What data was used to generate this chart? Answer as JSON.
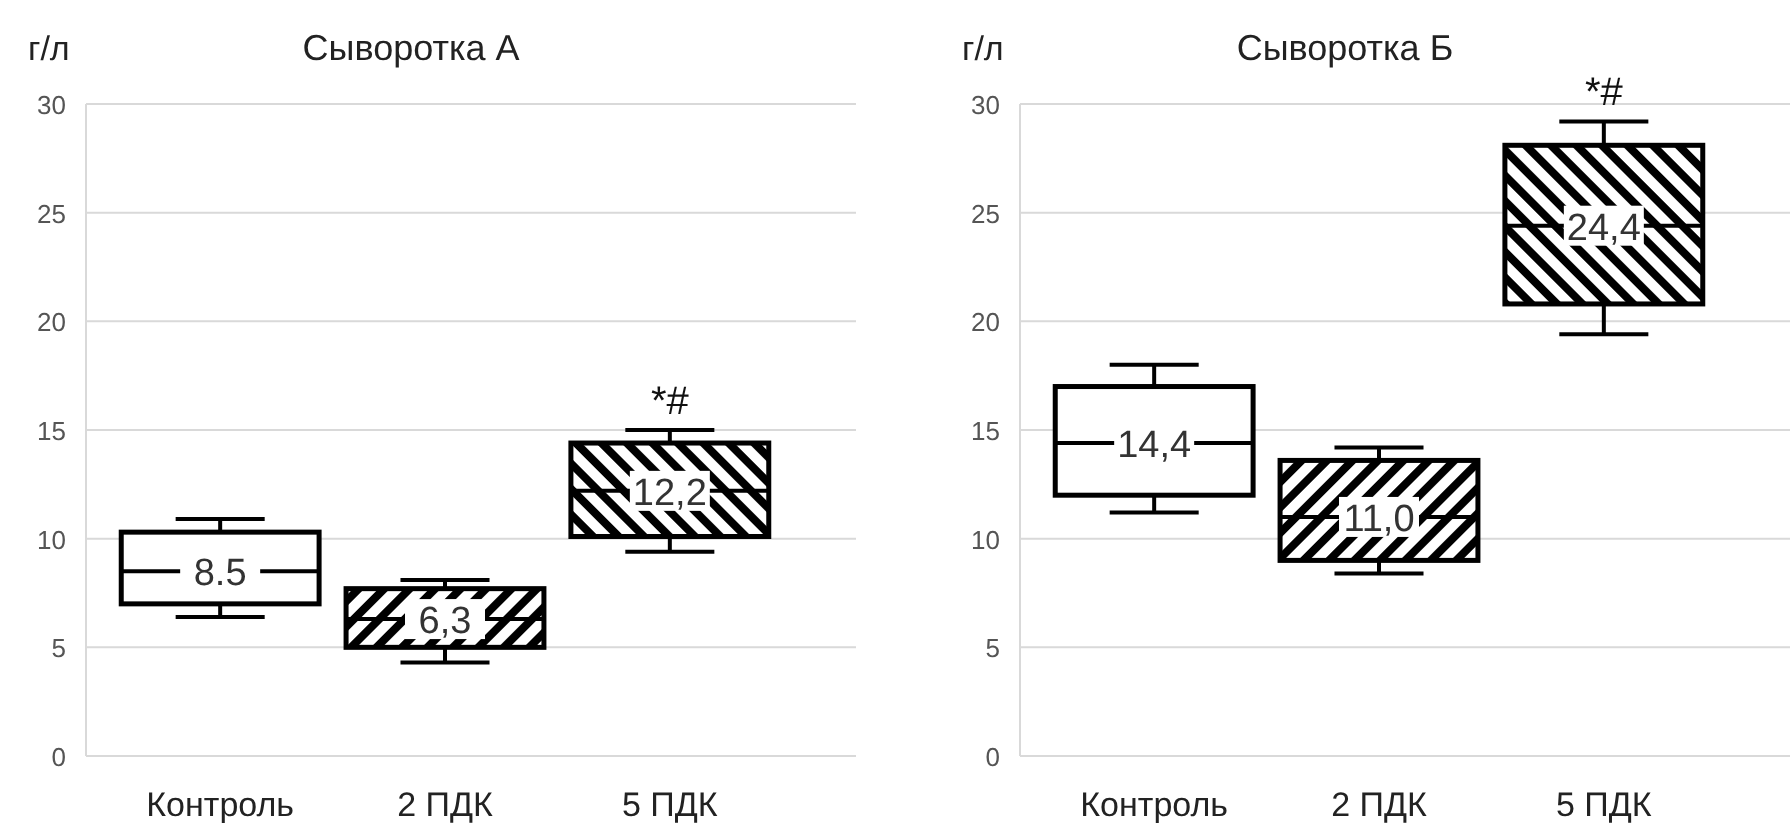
{
  "chart_data": [
    {
      "type": "box",
      "title": "Сыворотка А",
      "ylabel": "г/л",
      "categories": [
        "Контроль",
        "2 ПДК",
        "5 ПДК"
      ],
      "ylim": [
        0,
        30
      ],
      "yticks": [
        0,
        5,
        10,
        15,
        20,
        25,
        30
      ],
      "grid": "y",
      "colors": [
        "#ffffff",
        "#000000",
        "#000000"
      ],
      "boxes": [
        {
          "low": 6.4,
          "q1": 7.0,
          "median": 8.5,
          "q3": 10.3,
          "high": 10.9
        },
        {
          "low": 4.3,
          "q1": 5.0,
          "median": 6.3,
          "q3": 7.7,
          "high": 8.1
        },
        {
          "low": 9.4,
          "q1": 10.1,
          "median": 12.2,
          "q3": 14.4,
          "high": 15.0
        }
      ],
      "value_labels": [
        "8.5",
        "6,3",
        "12,2"
      ],
      "annotations": [
        {
          "text": "*#",
          "x": "5 ПДК",
          "y": 15.0
        }
      ]
    },
    {
      "type": "box",
      "title": "Сыворотка Б",
      "ylabel": "г/л",
      "categories": [
        "Контроль",
        "2 ПДК",
        "5 ПДК"
      ],
      "ylim": [
        0,
        30
      ],
      "yticks": [
        0,
        5,
        10,
        15,
        20,
        25,
        30
      ],
      "grid": "y",
      "colors": [
        "#ffffff",
        "#000000",
        "#000000"
      ],
      "boxes": [
        {
          "low": 11.2,
          "q1": 12.0,
          "median": 14.4,
          "q3": 17.0,
          "high": 18.0
        },
        {
          "low": 8.4,
          "q1": 9.0,
          "median": 11.0,
          "q3": 13.6,
          "high": 14.2
        },
        {
          "low": 19.4,
          "q1": 20.8,
          "median": 24.4,
          "q3": 28.1,
          "high": 29.2
        }
      ],
      "value_labels": [
        "14,4",
        "11,0",
        "24,4"
      ],
      "annotations": [
        {
          "text": "*#",
          "x": "5 ПДК",
          "y": 29.2
        }
      ]
    }
  ]
}
